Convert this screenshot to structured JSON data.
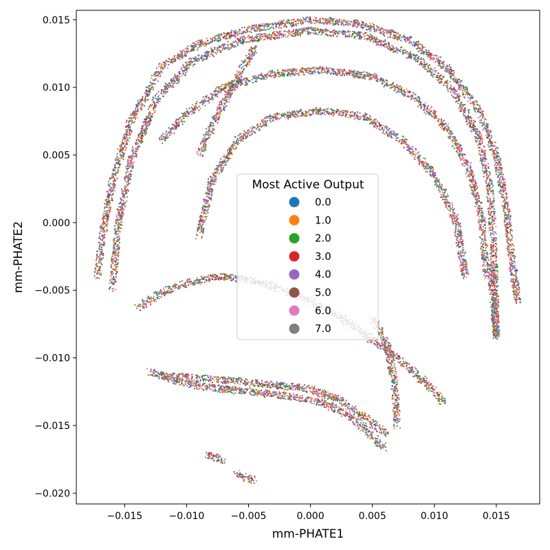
{
  "chart_data": {
    "type": "scatter",
    "title": "",
    "xlabel": "mm-PHATE1",
    "ylabel": "mm-PHATE2",
    "xlim": [
      -0.0189,
      0.0185
    ],
    "ylim": [
      -0.0208,
      0.0157
    ],
    "x_ticks": [
      {
        "value": -0.015,
        "label": "−0.015"
      },
      {
        "value": -0.01,
        "label": "−0.010"
      },
      {
        "value": -0.005,
        "label": "−0.005"
      },
      {
        "value": 0.0,
        "label": "0.000"
      },
      {
        "value": 0.005,
        "label": "0.005"
      },
      {
        "value": 0.01,
        "label": "0.010"
      },
      {
        "value": 0.015,
        "label": "0.015"
      }
    ],
    "y_ticks": [
      {
        "value": 0.015,
        "label": "0.015"
      },
      {
        "value": 0.01,
        "label": "0.010"
      },
      {
        "value": 0.005,
        "label": "0.005"
      },
      {
        "value": 0.0,
        "label": "0.000"
      },
      {
        "value": -0.005,
        "label": "−0.005"
      },
      {
        "value": -0.01,
        "label": "−0.010"
      },
      {
        "value": -0.015,
        "label": "−0.015"
      },
      {
        "value": -0.02,
        "label": "−0.020"
      }
    ],
    "grid": false,
    "legend": {
      "title": "Most Active Output",
      "placement": "center",
      "entries": [
        {
          "label": "0.0",
          "color": "#1f77b4"
        },
        {
          "label": "1.0",
          "color": "#ff7f0e"
        },
        {
          "label": "2.0",
          "color": "#2ca02c"
        },
        {
          "label": "3.0",
          "color": "#d62728"
        },
        {
          "label": "4.0",
          "color": "#9467bd"
        },
        {
          "label": "5.0",
          "color": "#8c564b"
        },
        {
          "label": "6.0",
          "color": "#e377c2"
        },
        {
          "label": "7.0",
          "color": "#7f7f7f"
        }
      ]
    },
    "structure": [
      {
        "part": "outer arc",
        "points": [
          [
            -0.0172,
            -0.004
          ],
          [
            -0.0168,
            -0.001
          ],
          [
            -0.016,
            0.003
          ],
          [
            -0.0145,
            0.0075
          ],
          [
            -0.012,
            0.0115
          ],
          [
            -0.009,
            0.0132
          ],
          [
            -0.005,
            0.0143
          ],
          [
            0.0,
            0.015
          ],
          [
            0.004,
            0.0147
          ],
          [
            0.008,
            0.0135
          ],
          [
            0.011,
            0.0115
          ],
          [
            0.0135,
            0.0085
          ],
          [
            0.015,
            0.005
          ],
          [
            0.0158,
            0.001
          ],
          [
            0.0163,
            -0.003
          ],
          [
            0.0167,
            -0.0058
          ]
        ]
      },
      {
        "part": "outer arc inner band",
        "points": [
          [
            -0.016,
            -0.005
          ],
          [
            -0.0155,
            0.0
          ],
          [
            -0.0145,
            0.0045
          ],
          [
            -0.0125,
            0.009
          ],
          [
            -0.0095,
            0.012
          ],
          [
            -0.0055,
            0.0135
          ],
          [
            0.0,
            0.0142
          ],
          [
            0.0045,
            0.0138
          ],
          [
            0.0085,
            0.0122
          ],
          [
            0.0115,
            0.0098
          ],
          [
            0.0135,
            0.0065
          ],
          [
            0.0145,
            0.0025
          ],
          [
            0.0148,
            -0.002
          ],
          [
            0.015,
            -0.0085
          ]
        ]
      },
      {
        "part": "inner arc",
        "points": [
          [
            -0.009,
            -0.001
          ],
          [
            -0.008,
            0.003
          ],
          [
            -0.006,
            0.006
          ],
          [
            -0.003,
            0.0078
          ],
          [
            0.001,
            0.0083
          ],
          [
            0.0045,
            0.0078
          ],
          [
            0.0075,
            0.006
          ],
          [
            0.01,
            0.0035
          ],
          [
            0.0118,
            0.0
          ],
          [
            0.0125,
            -0.004
          ]
        ]
      },
      {
        "part": "middle arc",
        "points": [
          [
            -0.012,
            0.006
          ],
          [
            -0.01,
            0.008
          ],
          [
            -0.007,
            0.01
          ],
          [
            -0.003,
            0.011
          ],
          [
            0.001,
            0.0113
          ],
          [
            0.005,
            0.0108
          ],
          [
            0.0085,
            0.0092
          ],
          [
            0.011,
            0.007
          ],
          [
            0.0128,
            0.004
          ],
          [
            0.0138,
            0.0005
          ],
          [
            0.0142,
            -0.004
          ]
        ]
      },
      {
        "part": "diagonal band",
        "points": [
          [
            -0.009,
            0.005
          ],
          [
            -0.0075,
            0.008
          ],
          [
            -0.006,
            0.0105
          ],
          [
            -0.0045,
            0.013
          ]
        ]
      },
      {
        "part": "middle wedge",
        "points": [
          [
            -0.014,
            -0.0063
          ],
          [
            -0.012,
            -0.0052
          ],
          [
            -0.01,
            -0.0045
          ],
          [
            -0.0075,
            -0.004
          ],
          [
            -0.005,
            -0.0042
          ],
          [
            -0.002,
            -0.005
          ],
          [
            0.001,
            -0.0062
          ],
          [
            0.004,
            -0.008
          ],
          [
            0.007,
            -0.01
          ],
          [
            0.0095,
            -0.012
          ],
          [
            0.0108,
            -0.0133
          ]
        ]
      },
      {
        "part": "lower bowl",
        "points": [
          [
            -0.013,
            -0.011
          ],
          [
            -0.011,
            -0.0117
          ],
          [
            -0.008,
            -0.0122
          ],
          [
            -0.005,
            -0.0125
          ],
          [
            -0.002,
            -0.0128
          ],
          [
            0.001,
            -0.0133
          ],
          [
            0.003,
            -0.0142
          ],
          [
            0.0045,
            -0.0153
          ],
          [
            0.0055,
            -0.0163
          ],
          [
            0.006,
            -0.0167
          ]
        ]
      },
      {
        "part": "lower bowl upper edge",
        "points": [
          [
            -0.012,
            -0.0113
          ],
          [
            -0.009,
            -0.0115
          ],
          [
            -0.006,
            -0.0117
          ],
          [
            -0.003,
            -0.012
          ],
          [
            0.0,
            -0.0123
          ],
          [
            0.0025,
            -0.0132
          ],
          [
            0.0045,
            -0.0145
          ],
          [
            0.0062,
            -0.0157
          ]
        ]
      },
      {
        "part": "small tail",
        "points": [
          [
            -0.0085,
            -0.0171
          ],
          [
            -0.007,
            -0.0176
          ]
        ]
      },
      {
        "part": "small tail 2",
        "points": [
          [
            -0.006,
            -0.0185
          ],
          [
            -0.0045,
            -0.0191
          ]
        ]
      },
      {
        "part": "blue vertical streak",
        "points": [
          [
            0.005,
            -0.007
          ],
          [
            0.0062,
            -0.009
          ],
          [
            0.0068,
            -0.012
          ],
          [
            0.007,
            -0.015
          ]
        ]
      },
      {
        "part": "right lobe",
        "points": [
          [
            0.0145,
            -0.003
          ],
          [
            0.0148,
            -0.006
          ],
          [
            0.015,
            -0.0085
          ]
        ]
      }
    ]
  }
}
